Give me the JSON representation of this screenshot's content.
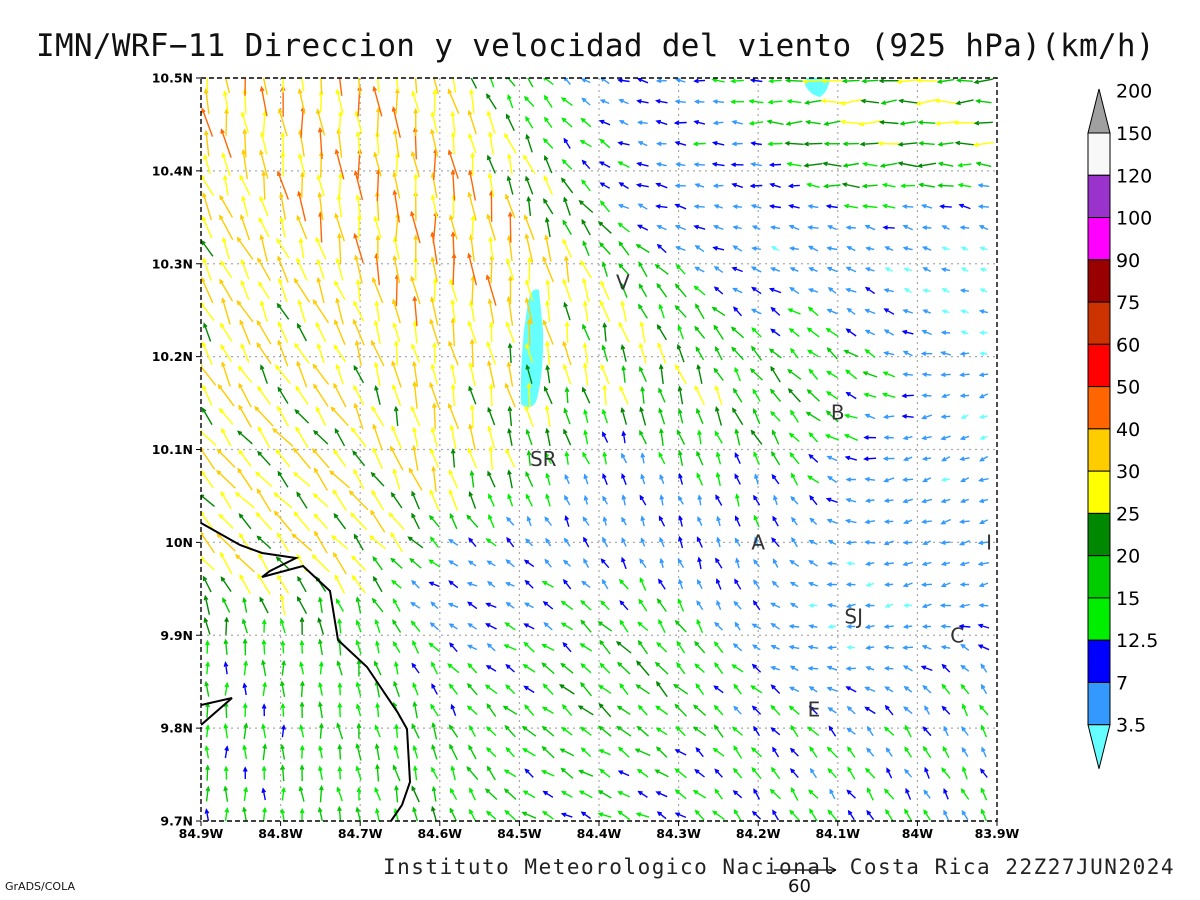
{
  "title": "IMN/WRF−11 Direccion y velocidad del viento (925 hPa)(km/h)",
  "credit": "Instituto Meteorologico Nacional Costa Rica 22Z27JUN2024",
  "software": "GrADS/COLA",
  "reference_vector_label": "60",
  "map": {
    "lon_range": [
      -84.9,
      -83.9
    ],
    "lat_range": [
      9.7,
      10.5
    ],
    "x_tick_labels": [
      "84.9W",
      "84.8W",
      "84.7W",
      "84.6W",
      "84.5W",
      "84.4W",
      "84.3W",
      "84.2W",
      "84.1W",
      "84W",
      "83.9W"
    ],
    "y_tick_labels": [
      "9.7N",
      "9.8N",
      "9.9N",
      "10N",
      "10.1N",
      "10.2N",
      "10.3N",
      "10.4N",
      "10.5N"
    ],
    "grid": true,
    "grid_style": "dotted",
    "coastline": true,
    "city_labels": [
      {
        "label": "V",
        "lon": -84.37,
        "lat": 10.28
      },
      {
        "label": "SR",
        "lon": -84.47,
        "lat": 10.09
      },
      {
        "label": "B",
        "lon": -84.1,
        "lat": 10.14
      },
      {
        "label": "A",
        "lon": -84.2,
        "lat": 10.0
      },
      {
        "label": "SJ",
        "lon": -84.08,
        "lat": 9.92
      },
      {
        "label": "C",
        "lon": -83.95,
        "lat": 9.9
      },
      {
        "label": "E",
        "lon": -84.13,
        "lat": 9.82
      },
      {
        "label": "I",
        "lon": -83.91,
        "lat": 10.0
      }
    ]
  },
  "colorbar": {
    "labels": [
      "3.5",
      "7",
      "12.5",
      "15",
      "20",
      "25",
      "30",
      "40",
      "50",
      "60",
      "75",
      "90",
      "100",
      "120",
      "150",
      "200"
    ],
    "colors": [
      "#66ffff",
      "#3399ff",
      "#0000ff",
      "#00ee00",
      "#00cc00",
      "#008800",
      "#ffff00",
      "#ffcc00",
      "#ff6600",
      "#ff0000",
      "#cc3300",
      "#990000",
      "#ff00ff",
      "#9933cc",
      "#f8f8f8",
      "#a0a0a0"
    ]
  },
  "chart_data": {
    "type": "vector_field",
    "variable": "Direccion y velocidad del viento (925 hPa)(km/h)",
    "regions": [
      {
        "area": "northwest",
        "direction": "north-northwest",
        "speed_kmh": [
          30,
          50
        ]
      },
      {
        "area": "north-central",
        "direction": "north",
        "speed_kmh": [
          40,
          60
        ]
      },
      {
        "area": "northeast",
        "direction": "west",
        "speed_kmh": [
          15,
          40
        ]
      },
      {
        "area": "southwest",
        "direction": "north",
        "speed_kmh": [
          15,
          25
        ]
      },
      {
        "area": "central",
        "direction": "northwest",
        "speed_kmh": [
          7,
          20
        ]
      },
      {
        "area": "east",
        "direction": "west-southwest",
        "speed_kmh": [
          3.5,
          15
        ]
      }
    ],
    "calm_patches_kmh": [
      "<3.5"
    ]
  }
}
